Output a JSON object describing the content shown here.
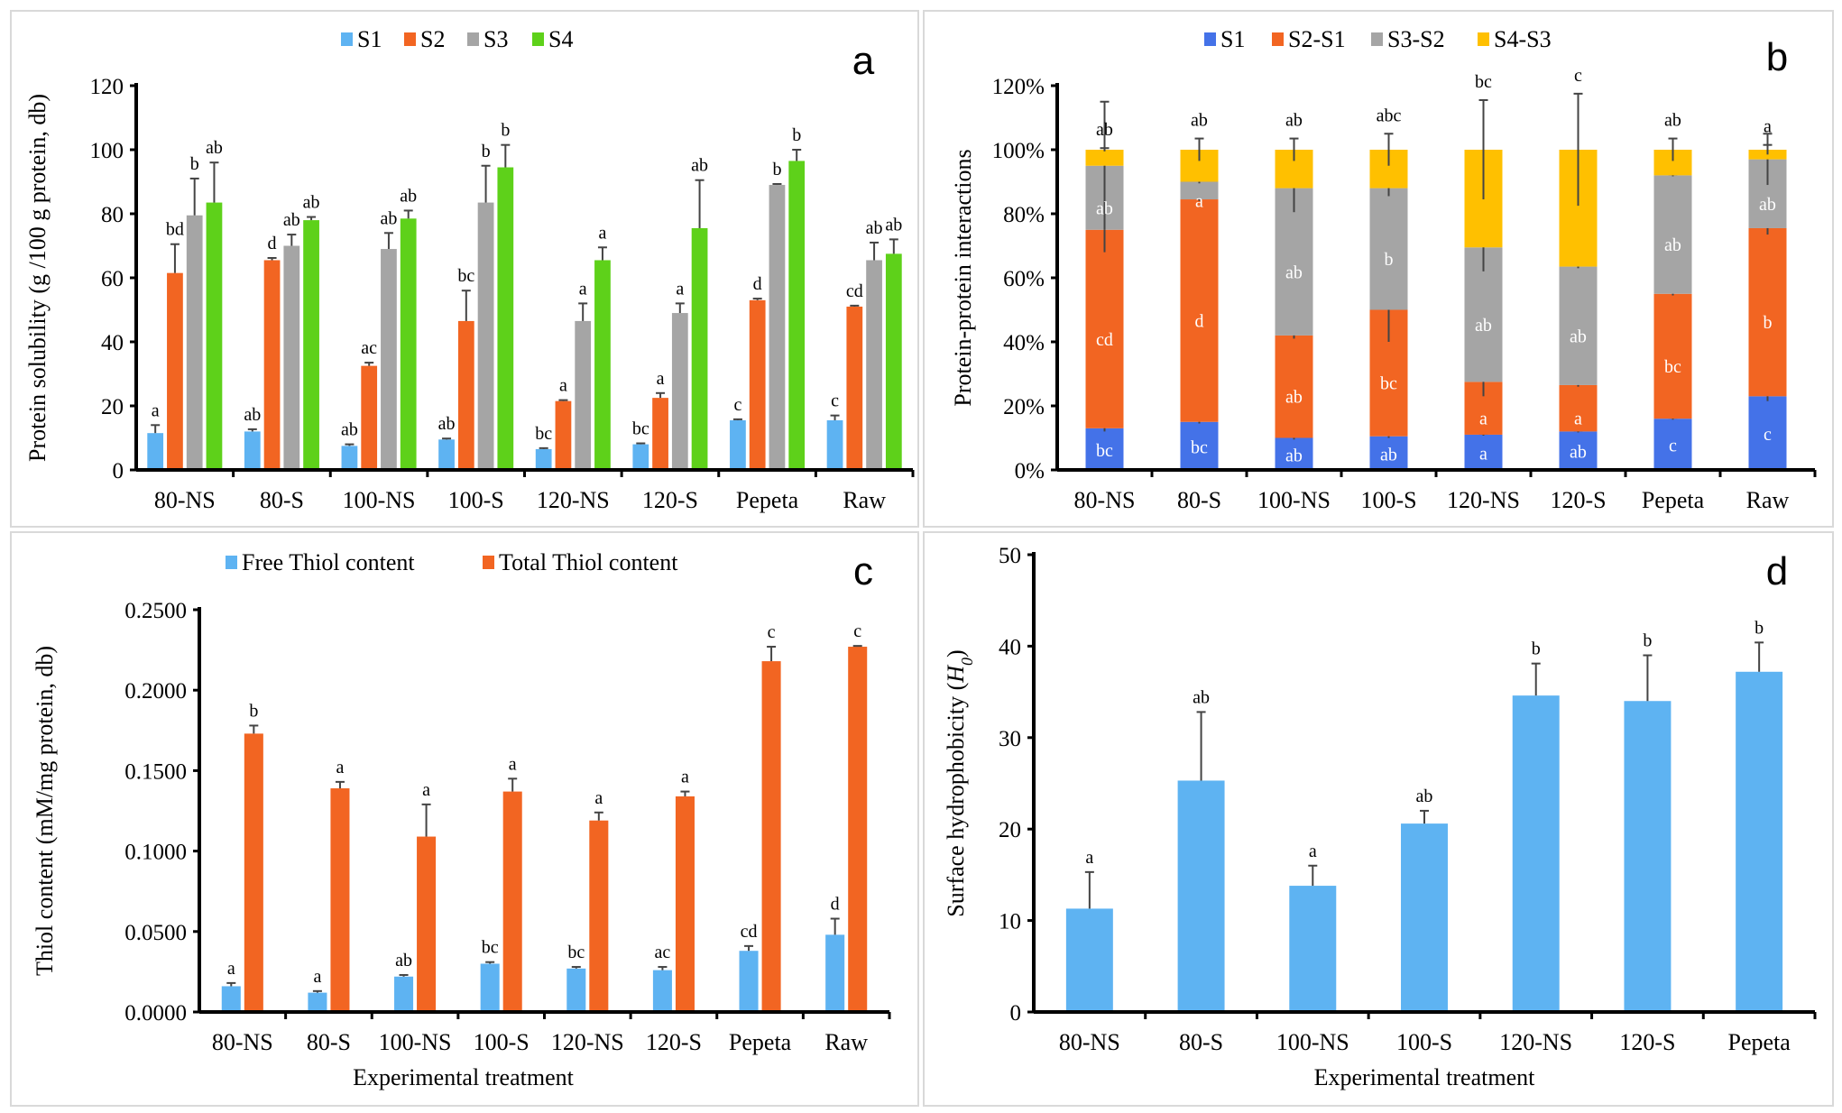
{
  "chart_data": [
    {
      "panel_letter": "a",
      "type": "bar",
      "categories": [
        "80-NS",
        "80-S",
        "100-NS",
        "100-S",
        "120-NS",
        "120-S",
        "Pepeta",
        "Raw"
      ],
      "ylabel": "Protein solubility (g /100 g protein, db)",
      "xlabel": "",
      "ylim": [
        0,
        120
      ],
      "yticks": [
        "0",
        "20",
        "40",
        "60",
        "80",
        "100",
        "120"
      ],
      "legend": "top",
      "series": [
        {
          "name": "S1",
          "color": "#5eb3f2",
          "values": [
            11.5,
            12,
            7.5,
            9.5,
            6.5,
            8,
            15.5,
            15.5
          ],
          "errors": [
            2.5,
            0.7,
            0.5,
            0.3,
            0.3,
            0.3,
            0.3,
            1.5
          ],
          "letters": [
            "a",
            "ab",
            "ab",
            "ab",
            "bc",
            "bc",
            "c",
            "c"
          ]
        },
        {
          "name": "S2",
          "color": "#f26522",
          "values": [
            61.5,
            65.5,
            32.5,
            46.5,
            21.5,
            22.5,
            53,
            51
          ],
          "errors": [
            9,
            0.7,
            1,
            9.5,
            0.3,
            1.5,
            0.5,
            0.3
          ],
          "letters": [
            "bd",
            "d",
            "ac",
            "bc",
            "a",
            "a",
            "d",
            "cd"
          ]
        },
        {
          "name": "S3",
          "color": "#a5a5a5",
          "values": [
            79.5,
            70,
            69,
            83.5,
            46.5,
            49,
            89,
            65.5
          ],
          "errors": [
            11.5,
            3.5,
            5,
            11.5,
            5.5,
            3,
            0.3,
            5.5
          ],
          "letters": [
            "b",
            "ab",
            "ab",
            "b",
            "a",
            "a",
            "b",
            "ab"
          ]
        },
        {
          "name": "S4",
          "color": "#5ed11a",
          "values": [
            83.5,
            78,
            78.5,
            94.5,
            65.5,
            75.5,
            96.5,
            67.5
          ],
          "errors": [
            12.5,
            1,
            2.5,
            7,
            4,
            15,
            3.5,
            4.5
          ],
          "letters": [
            "ab",
            "ab",
            "ab",
            "b",
            "a",
            "ab",
            "b",
            "ab"
          ]
        }
      ]
    },
    {
      "panel_letter": "b",
      "type": "stacked-bar",
      "categories": [
        "80-NS",
        "80-S",
        "100-NS",
        "100-S",
        "120-NS",
        "120-S",
        "Pepeta",
        "Raw"
      ],
      "ylabel": "Protein-protein interactions",
      "xlabel": "",
      "ylim": [
        0,
        120
      ],
      "yticks": [
        "0%",
        "20%",
        "40%",
        "60%",
        "80%",
        "100%",
        "120%"
      ],
      "legend": "top",
      "series": [
        {
          "name": "S1",
          "color": "#4472e8",
          "values": [
            13,
            15,
            10,
            10.5,
            11,
            12,
            16,
            23
          ],
          "errors": [
            1,
            0.5,
            0.5,
            0.5,
            0.3,
            0.3,
            0.3,
            1.5
          ],
          "letters": [
            "bc",
            "bc",
            "ab",
            "ab",
            "a",
            "ab",
            "c",
            "c"
          ]
        },
        {
          "name": "S2-S1",
          "color": "#f26522",
          "values": [
            62,
            69.5,
            32,
            39.5,
            16.5,
            14.5,
            39,
            52.5
          ],
          "errors": [
            7,
            0.5,
            1,
            10,
            4.5,
            0.5,
            0.5,
            2
          ],
          "letters": [
            "cd",
            "d",
            "ab",
            "bc",
            "a",
            "a",
            "bc",
            "b"
          ]
        },
        {
          "name": "S3-S2",
          "color": "#a5a5a5",
          "values": [
            20,
            5.5,
            46,
            38,
            42,
            37,
            37,
            21.5
          ],
          "errors": [
            20,
            0.5,
            7.5,
            2.5,
            7.5,
            0.5,
            0.3,
            8
          ],
          "letters": [
            "ab",
            "a",
            "ab",
            "b",
            "ab",
            "ab",
            "ab",
            "ab"
          ]
        },
        {
          "name": "S4-S3",
          "color": "#ffc000",
          "values": [
            5,
            10,
            12,
            12,
            30.5,
            36.5,
            8,
            3
          ],
          "errors": [
            0.5,
            3.5,
            3.5,
            5,
            15.5,
            17.5,
            3.5,
            1.5
          ],
          "letters": [
            "ab",
            "ab",
            "ab",
            "abc",
            "bc",
            "c",
            "ab",
            "a"
          ]
        }
      ]
    },
    {
      "panel_letter": "c",
      "type": "bar",
      "categories": [
        "80-NS",
        "80-S",
        "100-NS",
        "100-S",
        "120-NS",
        "120-S",
        "Pepeta",
        "Raw"
      ],
      "ylabel": "Thiol content (mM/mg protein, db)",
      "xlabel": "Experimental treatment",
      "ylim": [
        0,
        0.25
      ],
      "yticks": [
        "0.0000",
        "0.0500",
        "0.1000",
        "0.1500",
        "0.2000",
        "0.2500"
      ],
      "legend": "top",
      "series": [
        {
          "name": "Free Thiol content",
          "color": "#5eb3f2",
          "values": [
            0.016,
            0.012,
            0.022,
            0.03,
            0.027,
            0.026,
            0.038,
            0.048
          ],
          "errors": [
            0.002,
            0.001,
            0.001,
            0.001,
            0.001,
            0.002,
            0.003,
            0.01
          ],
          "letters": [
            "a",
            "a",
            "ab",
            "bc",
            "bc",
            "ac",
            "cd",
            "d"
          ]
        },
        {
          "name": "Total Thiol content",
          "color": "#f26522",
          "values": [
            0.173,
            0.139,
            0.109,
            0.137,
            0.119,
            0.134,
            0.218,
            0.227
          ],
          "errors": [
            0.005,
            0.004,
            0.02,
            0.008,
            0.005,
            0.003,
            0.009,
            0.0005
          ],
          "letters": [
            "b",
            "a",
            "a",
            "a",
            "a",
            "a",
            "c",
            "c"
          ]
        }
      ]
    },
    {
      "panel_letter": "d",
      "type": "bar",
      "categories": [
        "80-NS",
        "80-S",
        "100-NS",
        "100-S",
        "120-NS",
        "120-S",
        "Pepeta"
      ],
      "ylabel": "Surface hydrophobicity (H",
      "ylabel_sub": "0",
      "xlabel": "Experimental treatment",
      "ylim": [
        0,
        50
      ],
      "yticks": [
        "0",
        "10",
        "20",
        "30",
        "40",
        "50"
      ],
      "series": [
        {
          "color": "#5eb3f2",
          "values": [
            11.3,
            25.3,
            13.8,
            20.6,
            34.6,
            34,
            37.2
          ],
          "errors": [
            4,
            7.5,
            2.2,
            1.4,
            3.5,
            5,
            3.2
          ],
          "letters": [
            "a",
            "ab",
            "a",
            "ab",
            "b",
            "b",
            "b"
          ]
        }
      ]
    }
  ]
}
